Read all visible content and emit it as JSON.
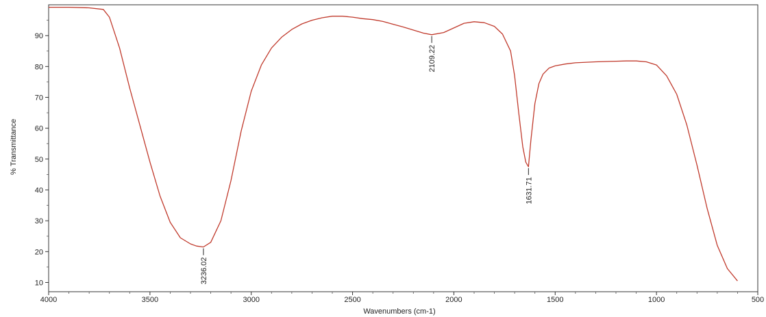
{
  "chart_data": {
    "type": "line",
    "title": "",
    "xlabel": "Wavenumbers (cm-1)",
    "ylabel": "% Transmittance",
    "xlim": [
      4000,
      500
    ],
    "ylim": [
      7,
      100
    ],
    "x_reversed": true,
    "x_ticks": [
      4000,
      3500,
      3000,
      2500,
      2000,
      1500,
      1000,
      500
    ],
    "y_ticks": [
      10,
      20,
      30,
      40,
      50,
      60,
      70,
      80,
      90
    ],
    "grid": false,
    "line_color": "#c0392b",
    "series": [
      {
        "x": [
          4000,
          3900,
          3800,
          3730,
          3700,
          3650,
          3600,
          3550,
          3500,
          3450,
          3400,
          3350,
          3300,
          3270,
          3236.02,
          3200,
          3150,
          3100,
          3050,
          3000,
          2950,
          2900,
          2850,
          2800,
          2750,
          2700,
          2650,
          2600,
          2550,
          2500,
          2450,
          2400,
          2350,
          2300,
          2250,
          2200,
          2150,
          2109.22,
          2050,
          2000,
          1950,
          1900,
          1850,
          1800,
          1760,
          1720,
          1700,
          1680,
          1660,
          1645,
          1631.71,
          1620,
          1600,
          1580,
          1560,
          1530,
          1500,
          1450,
          1400,
          1300,
          1200,
          1150,
          1100,
          1050,
          1000,
          950,
          900,
          850,
          800,
          750,
          700,
          650,
          600
        ],
        "y": [
          99.2,
          99.2,
          99.0,
          98.5,
          96.0,
          86.0,
          73.0,
          61.0,
          49.0,
          38.0,
          29.5,
          24.5,
          22.5,
          21.8,
          21.5,
          23.0,
          30.0,
          43.0,
          59.0,
          72.0,
          80.5,
          86.0,
          89.5,
          92.0,
          93.8,
          95.0,
          95.8,
          96.3,
          96.3,
          96.0,
          95.5,
          95.2,
          94.6,
          93.7,
          92.8,
          91.8,
          90.8,
          90.3,
          91.0,
          92.5,
          94.0,
          94.5,
          94.2,
          93.0,
          90.5,
          85.0,
          77.0,
          65.0,
          54.0,
          49.0,
          47.5,
          56.0,
          68.0,
          74.5,
          77.5,
          79.5,
          80.2,
          80.8,
          81.2,
          81.5,
          81.7,
          81.8,
          81.8,
          81.5,
          80.5,
          77.0,
          71.0,
          61.0,
          48.0,
          34.0,
          22.0,
          14.5,
          10.5
        ]
      }
    ],
    "peaks": [
      {
        "x": 3236.02,
        "y": 21.5,
        "label": "3236.02"
      },
      {
        "x": 2109.22,
        "y": 90.3,
        "label": "2109.22"
      },
      {
        "x": 1631.71,
        "y": 47.5,
        "label": "1631.71"
      }
    ]
  },
  "axes": {
    "x_tick_labels": [
      "4000",
      "3500",
      "3000",
      "2500",
      "2000",
      "1500",
      "1000",
      "500"
    ],
    "y_tick_labels": [
      "10",
      "20",
      "30",
      "40",
      "50",
      "60",
      "70",
      "80",
      "90"
    ]
  }
}
